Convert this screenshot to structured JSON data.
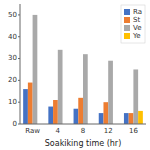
{
  "chart_data": {
    "type": "bar",
    "categories": [
      "Raw",
      "4",
      "8",
      "12",
      "16"
    ],
    "series": [
      {
        "name": "Ra",
        "color": "#4472C4",
        "values": [
          16,
          8,
          7,
          5,
          5
        ]
      },
      {
        "name": "St",
        "color": "#ED7D31",
        "values": [
          19,
          11,
          12,
          10,
          5
        ]
      },
      {
        "name": "Ve",
        "color": "#A9A9A9",
        "values": [
          50,
          34,
          32,
          29,
          25
        ]
      },
      {
        "name": "Ye",
        "color": "#FFC000",
        "values": [
          0,
          0,
          0,
          0,
          6
        ]
      }
    ],
    "x_label": "Soakiking time (hr)",
    "ylim": [
      0,
      55
    ],
    "yticks": [
      0,
      10,
      20,
      30,
      40,
      50
    ],
    "grid": false,
    "legend": "upper right"
  }
}
